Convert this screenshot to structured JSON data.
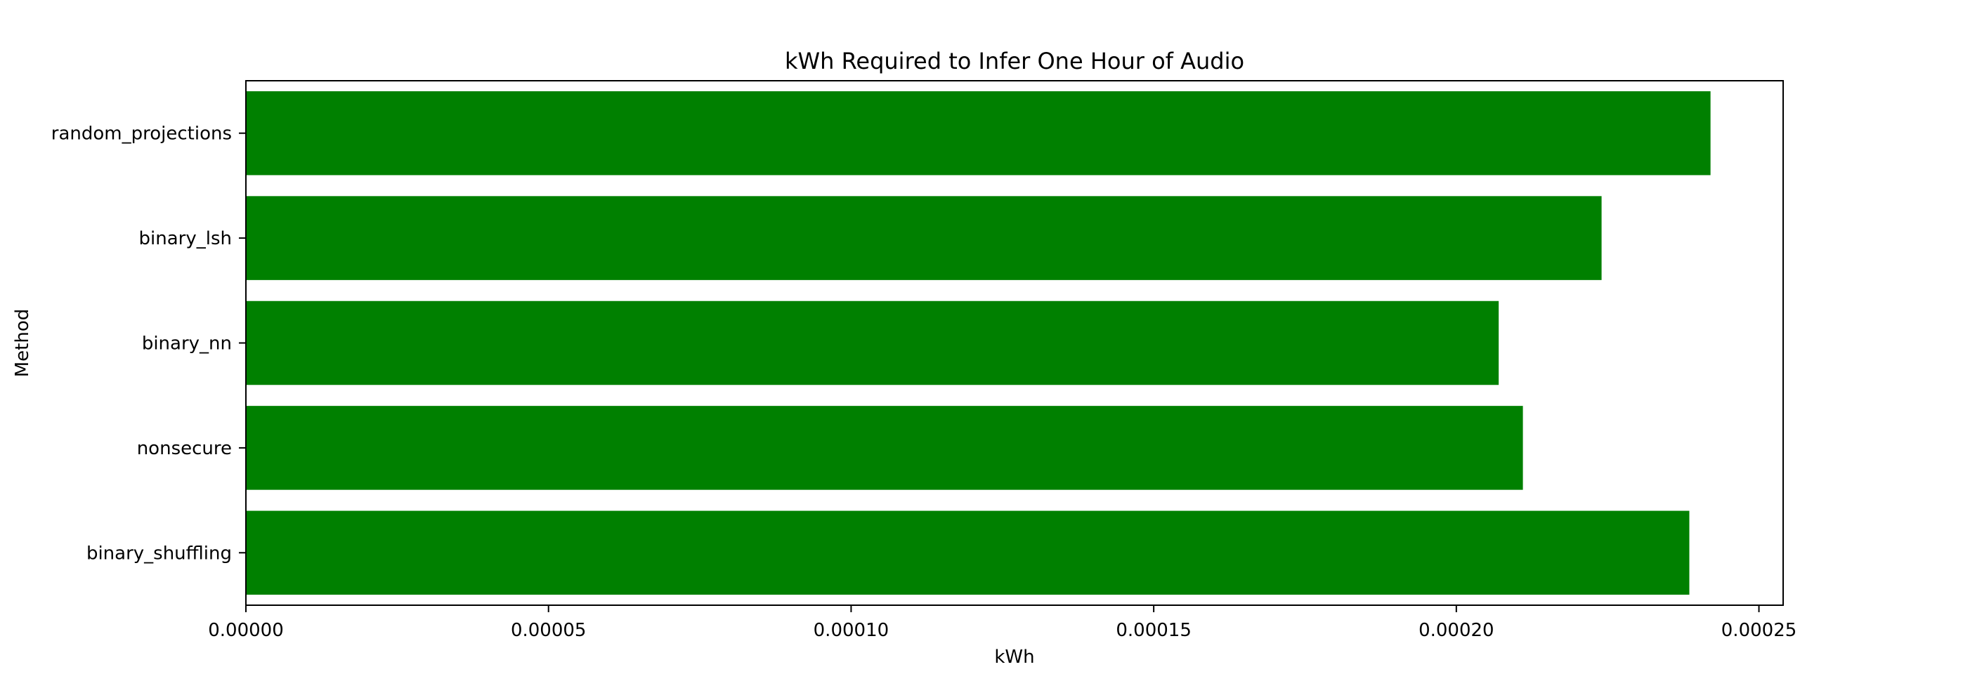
{
  "chart_data": {
    "type": "bar",
    "orientation": "horizontal",
    "title": "kWh Required to Infer One Hour of Audio",
    "xlabel": "kWh",
    "ylabel": "Method",
    "categories": [
      "random_projections",
      "binary_lsh",
      "binary_nn",
      "nonsecure",
      "binary_shuffling"
    ],
    "values": [
      0.000242,
      0.000224,
      0.000207,
      0.000211,
      0.0002385
    ],
    "xlim": [
      0,
      0.000254
    ],
    "xticks": [
      0.0,
      5e-05,
      0.0001,
      0.00015,
      0.0002,
      0.00025
    ],
    "xtick_labels": [
      "0.00000",
      "0.00005",
      "0.00010",
      "0.00015",
      "0.00020",
      "0.00025"
    ],
    "bar_color": "#008000",
    "grid": false,
    "legend": "none"
  }
}
